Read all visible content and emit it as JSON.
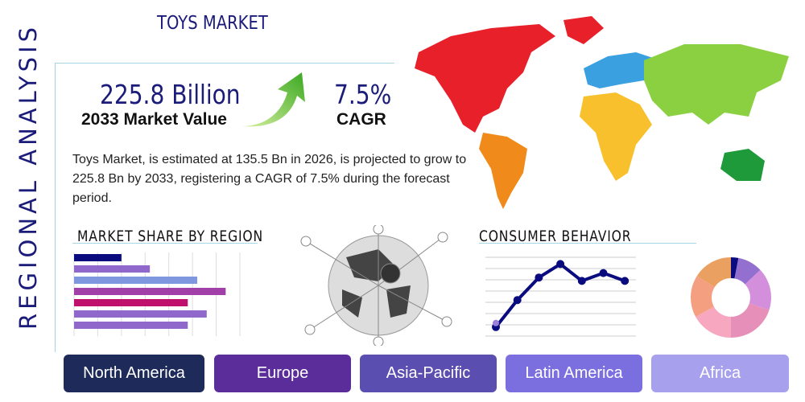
{
  "side_title": "REGIONAL ANALYSIS",
  "title": "TOYS MARKET",
  "market_value": {
    "value": "225.8 Billion",
    "label": "2033 Market Value"
  },
  "cagr": {
    "value": "7.5%",
    "label": "CAGR"
  },
  "description": "Toys Market, is estimated at 135.5 Bn in 2026, is projected to grow to 225.8 Bn by 2033, registering a CAGR of 7.5% during the forecast period.",
  "market_share_title": "MARKET SHARE BY REGION",
  "consumer_title": "CONSUMER BEHAVIOR",
  "regions": [
    {
      "label": "North America",
      "color": "#1e2a5a"
    },
    {
      "label": "Europe",
      "color": "#5a2d9a"
    },
    {
      "label": "Asia-Pacific",
      "color": "#5a4fb0"
    },
    {
      "label": "Latin America",
      "color": "#7b6fe0"
    },
    {
      "label": "Africa",
      "color": "#a7a0ec"
    }
  ],
  "chart_data": [
    {
      "type": "bar",
      "orientation": "horizontal",
      "values": [
        2,
        3.2,
        5.2,
        6.4,
        4.8,
        5.6,
        4.8
      ],
      "colors": [
        "#0b0b80",
        "#9068cc",
        "#7f97de",
        "#a040a8",
        "#c0106e",
        "#9068cc",
        "#9068cc"
      ],
      "xlim": [
        0,
        7
      ],
      "grid": true
    },
    {
      "type": "line",
      "values": [
        0.8,
        3.2,
        5.2,
        6.4,
        4.9,
        5.6,
        4.9
      ],
      "ylim": [
        0,
        7
      ],
      "color": "#0b0b80",
      "grid": true
    },
    {
      "type": "pie",
      "donut": true,
      "values": [
        3,
        10,
        17,
        20,
        17,
        17,
        16
      ],
      "colors": [
        "#0b0b80",
        "#9370d0",
        "#d48fdc",
        "#e68fb8",
        "#f7a8c0",
        "#f4a080",
        "#eaa060"
      ]
    }
  ]
}
